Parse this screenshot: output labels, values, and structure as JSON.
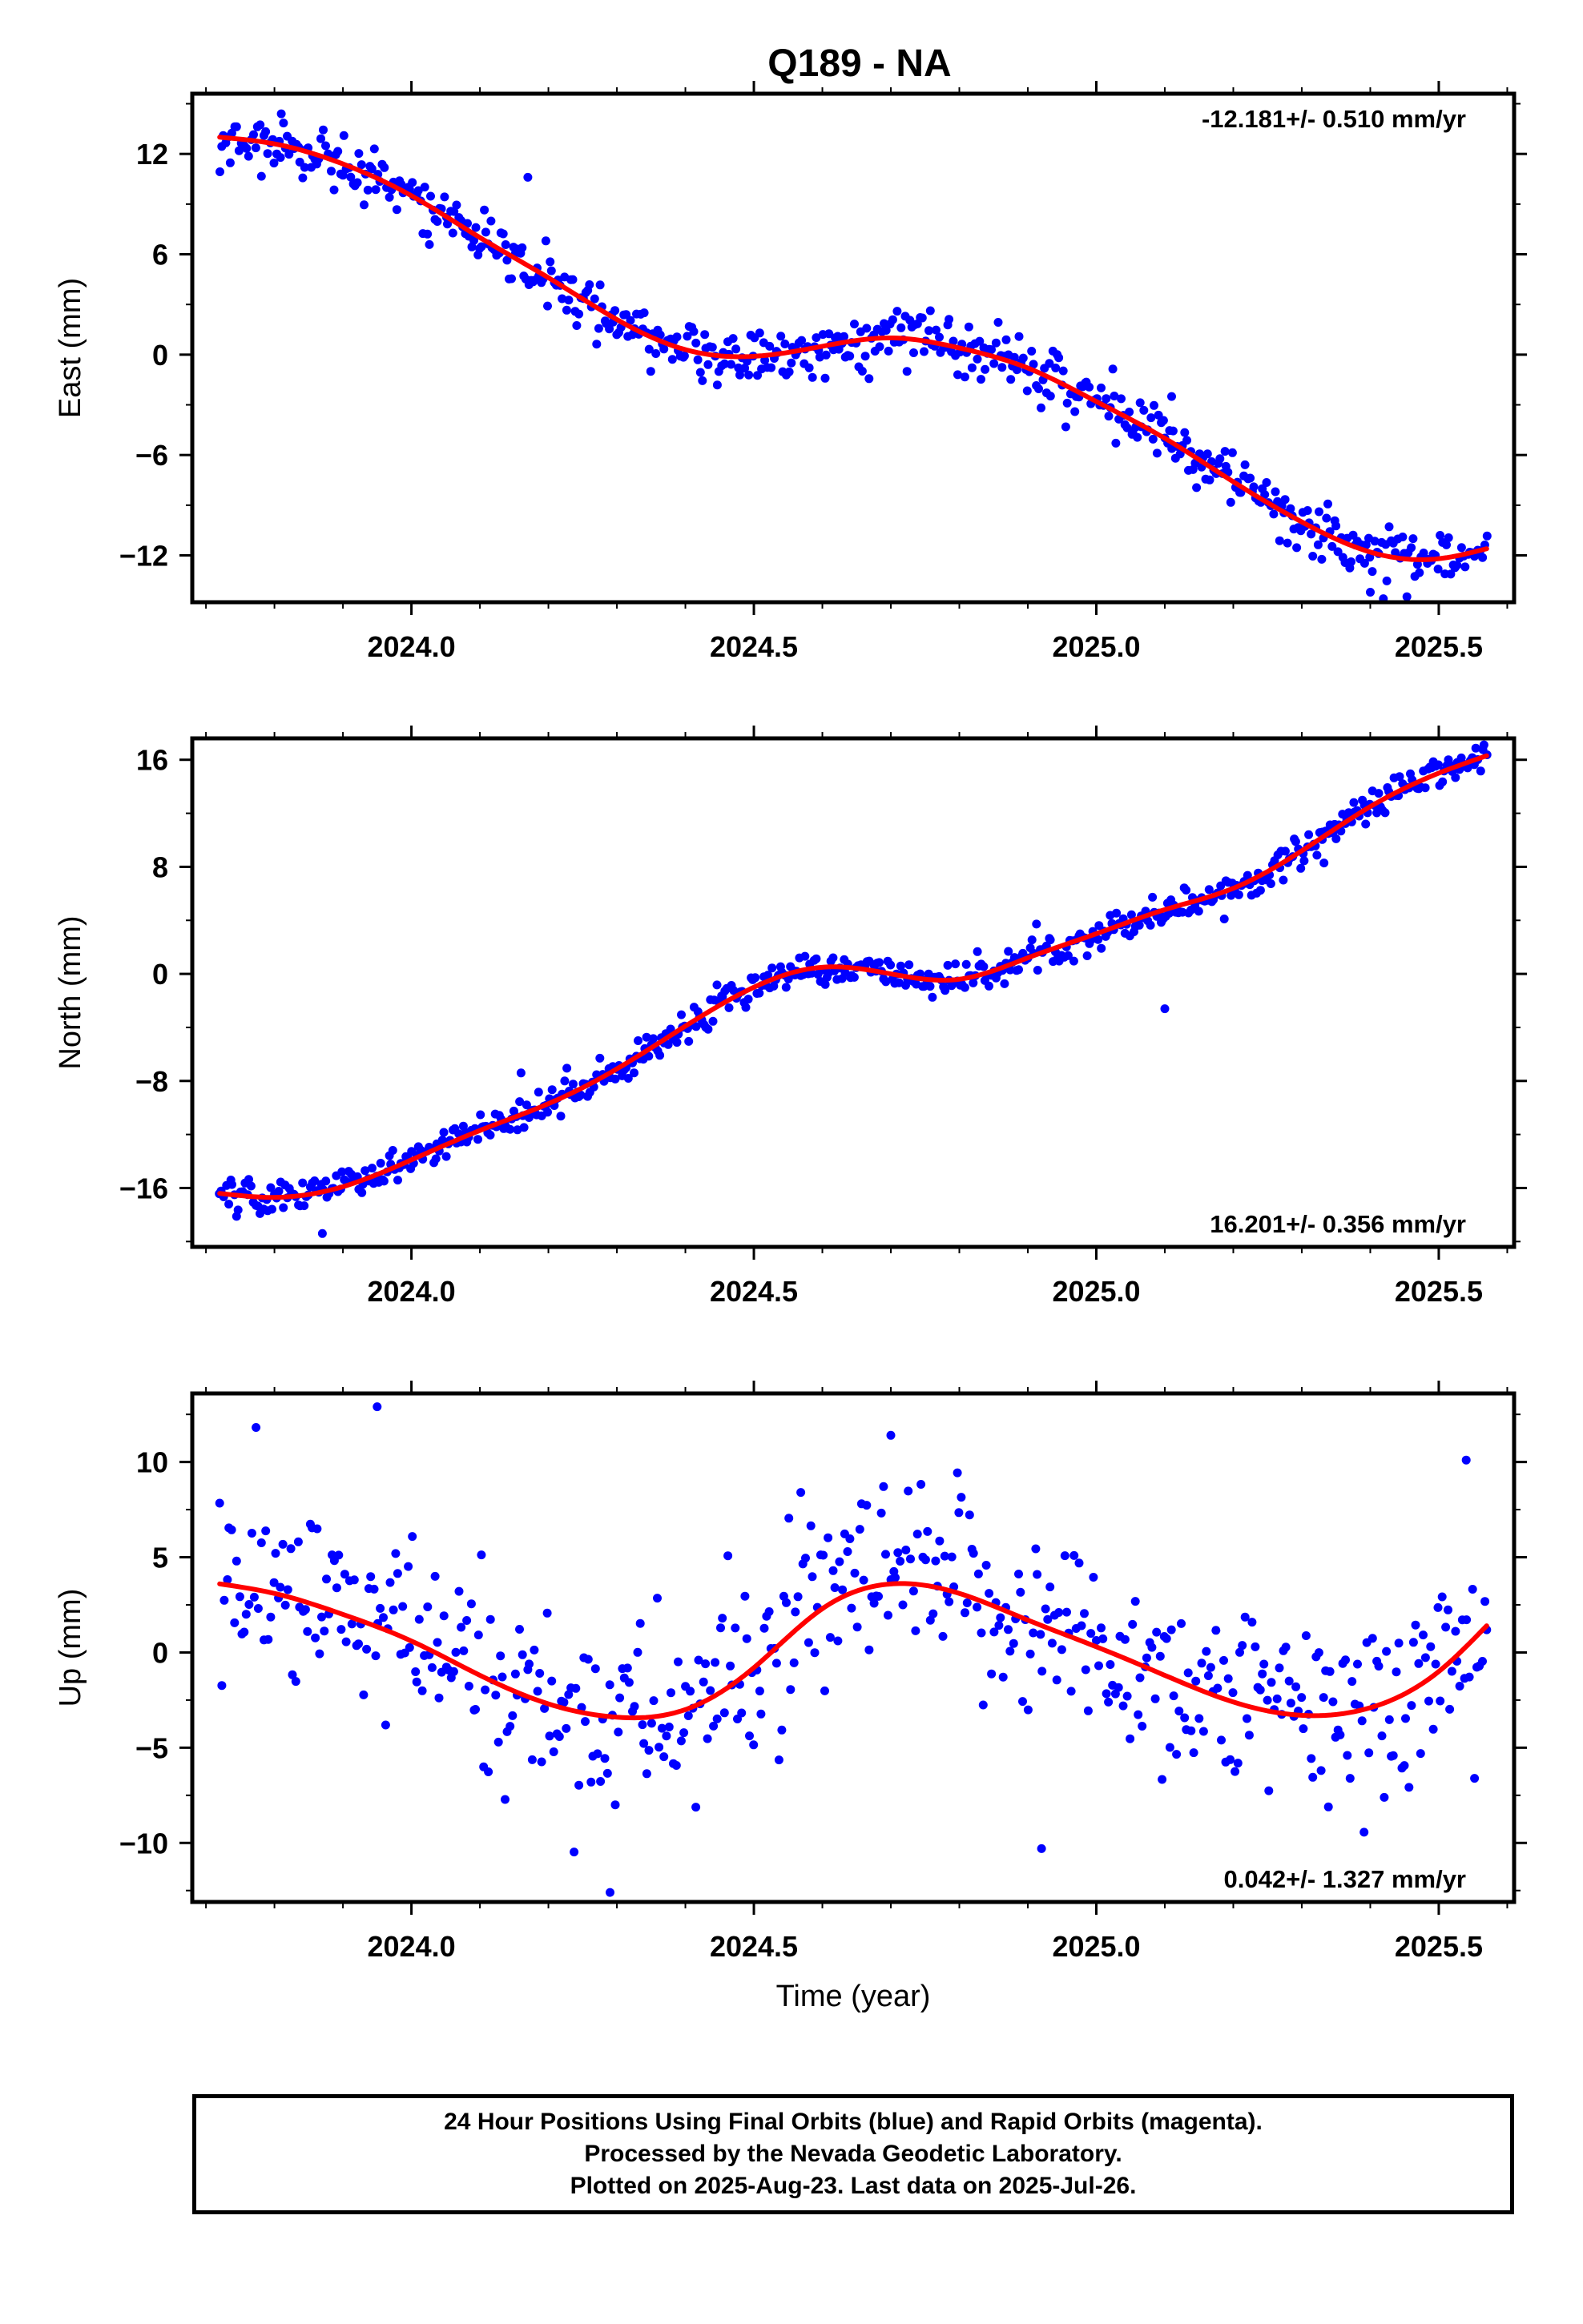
{
  "title": "Q189 - NA",
  "colors": {
    "data": "#0000ff",
    "fit": "#ff0000",
    "frame": "#000000"
  },
  "chart_data": [
    {
      "type": "scatter",
      "component": "East",
      "ylabel": "East (mm)",
      "xlabel": "",
      "rate_label": "-12.181+/- 0.510 mm/yr",
      "rate_position": "top-right",
      "xlim": [
        2023.68,
        2025.61
      ],
      "ylim": [
        -14.8,
        15.6
      ],
      "xticks": [
        2024.0,
        2024.5,
        2025.0,
        2025.5
      ],
      "xtick_labels": [
        "2024.0",
        "2024.5",
        "2025.0",
        "2025.5"
      ],
      "yticks": [
        12,
        6,
        0,
        -6,
        -12
      ],
      "ytick_labels": [
        "12",
        "6",
        "0",
        "−6",
        "−12"
      ],
      "x_start": 2023.72,
      "x_end": 2025.57,
      "n_points": 600,
      "noise_sd": 0.85,
      "outliers": [
        [
          2023.81,
          14.4
        ],
        [
          2024.17,
          10.6
        ],
        [
          2025.11,
          -2.5
        ],
        [
          2025.4,
          -14.2
        ]
      ],
      "fit": {
        "x": [
          2023.72,
          2023.8,
          2023.9,
          2024.0,
          2024.1,
          2024.2,
          2024.3,
          2024.4,
          2024.5,
          2024.6,
          2024.7,
          2024.8,
          2024.9,
          2025.0,
          2025.1,
          2025.2,
          2025.3,
          2025.4,
          2025.5,
          2025.57
        ],
        "y": [
          13.0,
          12.6,
          11.4,
          9.5,
          7.0,
          4.6,
          2.1,
          0.3,
          -0.1,
          0.5,
          1.0,
          0.4,
          -0.8,
          -2.8,
          -5.0,
          -7.6,
          -10.0,
          -11.8,
          -12.2,
          -11.6
        ]
      }
    },
    {
      "type": "scatter",
      "component": "North",
      "ylabel": "North (mm)",
      "xlabel": "",
      "rate_label": "16.201+/- 0.356 mm/yr",
      "rate_position": "bottom-right",
      "xlim": [
        2023.68,
        2025.61
      ],
      "ylim": [
        -20.4,
        17.6
      ],
      "xticks": [
        2024.0,
        2024.5,
        2025.0,
        2025.5
      ],
      "xtick_labels": [
        "2024.0",
        "2024.5",
        "2025.0",
        "2025.5"
      ],
      "yticks": [
        16,
        8,
        0,
        -8,
        -16
      ],
      "ytick_labels": [
        "16",
        "8",
        "0",
        "−8",
        "−16"
      ],
      "x_start": 2023.72,
      "x_end": 2025.57,
      "n_points": 600,
      "noise_sd": 0.6,
      "outliers": [
        [
          2023.87,
          -19.4
        ],
        [
          2024.16,
          -7.4
        ],
        [
          2025.1,
          -2.6
        ],
        [
          2025.33,
          10.6
        ]
      ],
      "fit": {
        "x": [
          2023.72,
          2023.8,
          2023.9,
          2024.0,
          2024.1,
          2024.2,
          2024.3,
          2024.4,
          2024.5,
          2024.6,
          2024.7,
          2024.8,
          2024.9,
          2025.0,
          2025.1,
          2025.2,
          2025.3,
          2025.4,
          2025.5,
          2025.57
        ],
        "y": [
          -16.4,
          -16.7,
          -15.9,
          -13.9,
          -11.7,
          -9.7,
          -7.1,
          -3.9,
          -1.0,
          0.5,
          0.0,
          -0.4,
          1.2,
          3.0,
          4.8,
          6.4,
          9.2,
          12.5,
          15.0,
          16.3
        ]
      }
    },
    {
      "type": "scatter",
      "component": "Up",
      "ylabel": "Up (mm)",
      "xlabel": "Time (year)",
      "rate_label": "0.042+/- 1.327 mm/yr",
      "rate_position": "bottom-right",
      "xlim": [
        2023.68,
        2025.61
      ],
      "ylim": [
        -13.1,
        13.6
      ],
      "xticks": [
        2024.0,
        2024.5,
        2025.0,
        2025.5
      ],
      "xtick_labels": [
        "2024.0",
        "2024.5",
        "2025.0",
        "2025.5"
      ],
      "yticks": [
        10,
        5,
        0,
        -5,
        -10
      ],
      "ytick_labels": [
        "10",
        "5",
        "0",
        "−5",
        "−10"
      ],
      "x_start": 2023.72,
      "x_end": 2025.57,
      "n_points": 520,
      "noise_sd": 2.6,
      "outliers": [
        [
          2023.95,
          12.9
        ],
        [
          2024.29,
          -12.6
        ],
        [
          2024.7,
          11.4
        ],
        [
          2024.92,
          -10.3
        ],
        [
          2025.54,
          10.1
        ]
      ],
      "fit": {
        "x": [
          2023.72,
          2023.8,
          2023.9,
          2024.0,
          2024.1,
          2024.2,
          2024.3,
          2024.4,
          2024.5,
          2024.6,
          2024.7,
          2024.8,
          2024.9,
          2025.0,
          2025.1,
          2025.2,
          2025.3,
          2025.4,
          2025.5,
          2025.57
        ],
        "y": [
          3.6,
          3.1,
          2.0,
          0.6,
          -1.2,
          -2.7,
          -3.4,
          -3.0,
          -0.8,
          2.3,
          3.6,
          3.1,
          1.7,
          0.3,
          -1.2,
          -2.6,
          -3.3,
          -2.9,
          -1.0,
          1.4
        ]
      }
    }
  ],
  "footer": {
    "line1": "24 Hour Positions Using Final Orbits (blue) and Rapid Orbits (magenta).",
    "line2": "Processed by the Nevada Geodetic Laboratory.",
    "line3": "Plotted on 2025-Aug-23. Last data on 2025-Jul-26."
  }
}
